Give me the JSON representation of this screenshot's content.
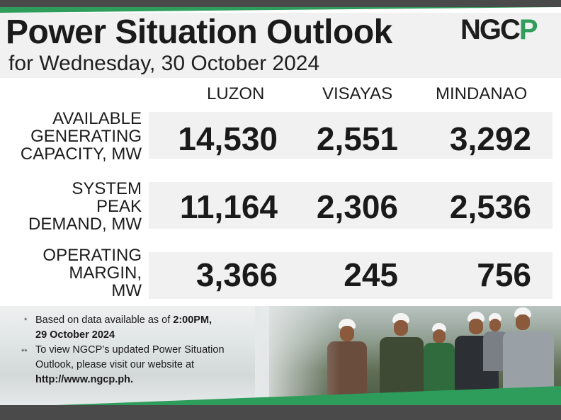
{
  "header": {
    "title": "Power Situation Outlook",
    "subtitle": "for Wednesday, 30 October 2024",
    "logo_text": "NGC",
    "logo_accent": "P"
  },
  "columns": [
    "LUZON",
    "VISAYAS",
    "MINDANAO"
  ],
  "rows": [
    {
      "label_lines": [
        "AVAILABLE",
        "GENERATING",
        "CAPACITY, MW"
      ],
      "values": [
        "14,530",
        "2,551",
        "3,292"
      ]
    },
    {
      "label_lines": [
        "SYSTEM",
        "PEAK",
        "DEMAND, MW"
      ],
      "values": [
        "11,164",
        "2,306",
        "2,536"
      ]
    },
    {
      "label_lines": [
        "OPERATING",
        "MARGIN,",
        "MW"
      ],
      "values": [
        "3,366",
        "245",
        "756"
      ]
    }
  ],
  "notes": {
    "note1_mark": "*",
    "note1_text": "Based on data available as of ",
    "note1_bold": "2:00PM,",
    "note1_line2": "29 October 2024",
    "note2_mark": "**",
    "note2_line1": "To view NGCP’s updated Power Situation",
    "note2_line2": "Outlook, please visit our website at",
    "note2_line3": "http://www.ngcp.ph."
  },
  "colors": {
    "brand_green": "#2e9c5a",
    "dark_bar": "#4a4a4a",
    "text": "#1a1a1a",
    "panel": "#f1f1f1"
  }
}
